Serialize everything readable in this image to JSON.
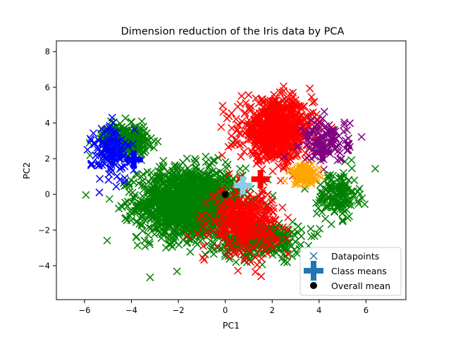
{
  "chart_data": {
    "type": "scatter",
    "title": "Dimension reduction of the Iris data by PCA",
    "xlabel": "PC1",
    "ylabel": "PC2",
    "xlim": [
      -7.2,
      7.7
    ],
    "ylim": [
      -5.9,
      8.6
    ],
    "xticks": [
      -6,
      -4,
      -2,
      0,
      2,
      4,
      6
    ],
    "yticks": [
      -4,
      -2,
      0,
      2,
      4,
      6,
      8
    ],
    "grid": false,
    "legend_position": "lower-right",
    "legend": [
      {
        "label": "Datapoints",
        "marker": "x",
        "color": "#1f77b4"
      },
      {
        "label": "Class means",
        "marker": "plus",
        "color": "#1f77b4"
      },
      {
        "label": "Overall mean",
        "marker": "circle",
        "color": "#000000"
      }
    ],
    "class_clusters": [
      {
        "color": "#008000",
        "count": 1500,
        "center": [
          -1.5,
          -0.5
        ],
        "spread": [
          2.0,
          1.8
        ]
      },
      {
        "color": "#008000",
        "count": 350,
        "center": [
          -4.3,
          3.0
        ],
        "spread": [
          0.9,
          0.8
        ]
      },
      {
        "color": "#008000",
        "count": 350,
        "center": [
          1.5,
          -2.5
        ],
        "spread": [
          1.6,
          0.9
        ]
      },
      {
        "color": "#008000",
        "count": 150,
        "center": [
          4.8,
          0.0
        ],
        "spread": [
          0.8,
          1.2
        ]
      },
      {
        "color": "#ff0000",
        "count": 800,
        "center": [
          2.2,
          3.6
        ],
        "spread": [
          1.4,
          1.5
        ]
      },
      {
        "color": "#ff0000",
        "count": 350,
        "center": [
          0.8,
          -1.5
        ],
        "spread": [
          1.3,
          1.6
        ]
      },
      {
        "color": "#0000ff",
        "count": 120,
        "center": [
          -4.8,
          2.3
        ],
        "spread": [
          0.8,
          1.5
        ]
      },
      {
        "color": "#800080",
        "count": 120,
        "center": [
          4.3,
          3.0
        ],
        "spread": [
          0.9,
          1.1
        ]
      },
      {
        "color": "#ffa500",
        "count": 90,
        "center": [
          3.4,
          1.1
        ],
        "spread": [
          0.6,
          0.5
        ]
      }
    ],
    "class_means": [
      {
        "x": -3.9,
        "y": 1.95,
        "color": "#0000ff"
      },
      {
        "x": 4.15,
        "y": 2.35,
        "color": "#800080"
      },
      {
        "x": 3.2,
        "y": 1.2,
        "color": "#ffa500"
      },
      {
        "x": 0.75,
        "y": 0.5,
        "color": "#87ceeb"
      },
      {
        "x": 1.5,
        "y": 0.85,
        "color": "#ff0000"
      },
      {
        "x": -2.5,
        "y": -0.8,
        "color": "#008000"
      }
    ],
    "overall_mean": {
      "x": 0.0,
      "y": 0.0,
      "color": "#000000"
    }
  }
}
